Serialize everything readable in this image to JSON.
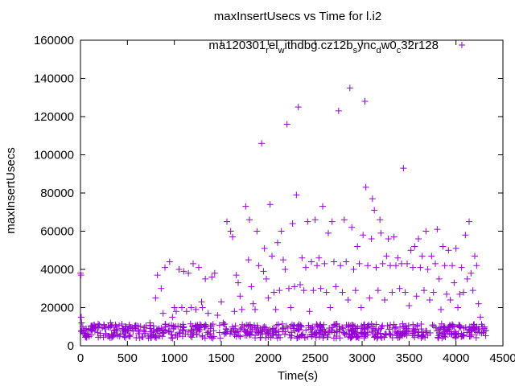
{
  "chart_data": {
    "type": "scatter",
    "title": "maxInsertUsecs vs Time for l.i2",
    "xlabel": "Time(s)",
    "ylabel": "maxInsertUsecs",
    "xlim": [
      0,
      4500
    ],
    "ylim": [
      0,
      160000
    ],
    "x_ticks": [
      0,
      500,
      1000,
      1500,
      2000,
      2500,
      3000,
      3500,
      4000,
      4500
    ],
    "y_ticks": [
      0,
      20000,
      40000,
      60000,
      80000,
      100000,
      120000,
      140000,
      160000
    ],
    "grid": false,
    "legend_position": "top-right",
    "series": [
      {
        "name_parts": [
          {
            "text": "ma120301",
            "sub": false
          },
          {
            "text": "r",
            "sub": true
          },
          {
            "text": "el",
            "sub": false
          },
          {
            "text": "w",
            "sub": true
          },
          {
            "text": "ithdbg.cz12b",
            "sub": false
          },
          {
            "text": "s",
            "sub": true
          },
          {
            "text": "ync",
            "sub": false
          },
          {
            "text": "d",
            "sub": true
          },
          {
            "text": "w0",
            "sub": false
          },
          {
            "text": "c",
            "sub": true
          },
          {
            "text": "32r128",
            "sub": false
          }
        ],
        "color": "#9400d3",
        "marker": "plus",
        "points": [
          [
            0,
            38000
          ],
          [
            5,
            37000
          ],
          [
            8,
            15000
          ],
          [
            12,
            12000
          ],
          [
            25,
            10000
          ],
          [
            60,
            9000
          ],
          [
            120,
            10500
          ],
          [
            200,
            11000
          ],
          [
            260,
            9500
          ],
          [
            320,
            12000
          ],
          [
            380,
            10000
          ],
          [
            450,
            9000
          ],
          [
            520,
            11000
          ],
          [
            600,
            10500
          ],
          [
            680,
            9500
          ],
          [
            740,
            12000
          ],
          [
            800,
            25000
          ],
          [
            820,
            37000
          ],
          [
            860,
            30000
          ],
          [
            880,
            17000
          ],
          [
            900,
            41000
          ],
          [
            950,
            44000
          ],
          [
            980,
            15000
          ],
          [
            1000,
            20000
          ],
          [
            1020,
            18000
          ],
          [
            1050,
            40000
          ],
          [
            1080,
            20000
          ],
          [
            1100,
            39000
          ],
          [
            1130,
            18000
          ],
          [
            1150,
            38000
          ],
          [
            1180,
            20000
          ],
          [
            1200,
            43000
          ],
          [
            1230,
            19000
          ],
          [
            1260,
            41000
          ],
          [
            1290,
            23000
          ],
          [
            1300,
            20000
          ],
          [
            1330,
            35000
          ],
          [
            1360,
            17000
          ],
          [
            1400,
            36000
          ],
          [
            1430,
            38000
          ],
          [
            1460,
            16000
          ],
          [
            1500,
            23000
          ],
          [
            1520,
            12000
          ],
          [
            1560,
            65000
          ],
          [
            1600,
            60000
          ],
          [
            1620,
            57000
          ],
          [
            1640,
            18000
          ],
          [
            1660,
            37000
          ],
          [
            1680,
            33000
          ],
          [
            1700,
            26000
          ],
          [
            1720,
            19000
          ],
          [
            1760,
            73000
          ],
          [
            1790,
            45000
          ],
          [
            1800,
            66000
          ],
          [
            1820,
            31000
          ],
          [
            1840,
            22000
          ],
          [
            1860,
            19000
          ],
          [
            1880,
            60000
          ],
          [
            1900,
            42000
          ],
          [
            1930,
            106000
          ],
          [
            1950,
            39000
          ],
          [
            1960,
            51000
          ],
          [
            1980,
            35000
          ],
          [
            2000,
            25000
          ],
          [
            2020,
            74000
          ],
          [
            2040,
            47000
          ],
          [
            2060,
            28000
          ],
          [
            2080,
            19000
          ],
          [
            2100,
            54000
          ],
          [
            2120,
            29000
          ],
          [
            2140,
            60000
          ],
          [
            2160,
            45000
          ],
          [
            2180,
            40000
          ],
          [
            2200,
            116000
          ],
          [
            2220,
            30000
          ],
          [
            2240,
            20000
          ],
          [
            2260,
            64000
          ],
          [
            2280,
            31000
          ],
          [
            2300,
            79000
          ],
          [
            2320,
            125000
          ],
          [
            2340,
            32000
          ],
          [
            2360,
            46000
          ],
          [
            2380,
            29000
          ],
          [
            2400,
            41000
          ],
          [
            2420,
            65000
          ],
          [
            2440,
            18000
          ],
          [
            2460,
            44000
          ],
          [
            2480,
            29000
          ],
          [
            2500,
            66000
          ],
          [
            2520,
            42000
          ],
          [
            2540,
            46000
          ],
          [
            2560,
            30000
          ],
          [
            2580,
            73000
          ],
          [
            2600,
            43000
          ],
          [
            2620,
            28000
          ],
          [
            2640,
            59000
          ],
          [
            2660,
            20000
          ],
          [
            2680,
            65000
          ],
          [
            2700,
            44000
          ],
          [
            2720,
            31000
          ],
          [
            2750,
            123000
          ],
          [
            2770,
            42000
          ],
          [
            2790,
            28000
          ],
          [
            2810,
            66000
          ],
          [
            2830,
            44000
          ],
          [
            2850,
            24000
          ],
          [
            2870,
            135000
          ],
          [
            2890,
            62000
          ],
          [
            2910,
            40000
          ],
          [
            2930,
            29000
          ],
          [
            2950,
            52000
          ],
          [
            2970,
            43000
          ],
          [
            2990,
            20000
          ],
          [
            3010,
            58000
          ],
          [
            3030,
            128000
          ],
          [
            3040,
            83000
          ],
          [
            3060,
            42000
          ],
          [
            3080,
            25000
          ],
          [
            3100,
            56000
          ],
          [
            3110,
            77000
          ],
          [
            3130,
            71000
          ],
          [
            3150,
            41000
          ],
          [
            3170,
            29000
          ],
          [
            3190,
            66000
          ],
          [
            3200,
            59000
          ],
          [
            3220,
            43000
          ],
          [
            3240,
            24000
          ],
          [
            3260,
            47000
          ],
          [
            3280,
            56000
          ],
          [
            3300,
            42000
          ],
          [
            3320,
            28000
          ],
          [
            3340,
            57000
          ],
          [
            3360,
            42000
          ],
          [
            3380,
            46000
          ],
          [
            3400,
            30000
          ],
          [
            3420,
            43000
          ],
          [
            3440,
            93000
          ],
          [
            3460,
            28000
          ],
          [
            3480,
            43000
          ],
          [
            3500,
            21000
          ],
          [
            3520,
            50000
          ],
          [
            3540,
            41000
          ],
          [
            3560,
            52000
          ],
          [
            3580,
            26000
          ],
          [
            3600,
            56000
          ],
          [
            3620,
            41000
          ],
          [
            3640,
            47000
          ],
          [
            3660,
            29000
          ],
          [
            3680,
            60000
          ],
          [
            3700,
            40000
          ],
          [
            3720,
            24000
          ],
          [
            3740,
            47000
          ],
          [
            3760,
            28000
          ],
          [
            3780,
            43000
          ],
          [
            3800,
            61000
          ],
          [
            3820,
            35000
          ],
          [
            3840,
            19000
          ],
          [
            3860,
            52000
          ],
          [
            3880,
            42000
          ],
          [
            3900,
            27000
          ],
          [
            3920,
            50000
          ],
          [
            3940,
            24000
          ],
          [
            3960,
            42000
          ],
          [
            3980,
            33000
          ],
          [
            4000,
            51000
          ],
          [
            4020,
            20000
          ],
          [
            4040,
            27000
          ],
          [
            4060,
            41000
          ],
          [
            4080,
            28000
          ],
          [
            4100,
            58000
          ],
          [
            4120,
            35000
          ],
          [
            4140,
            65000
          ],
          [
            4160,
            38000
          ],
          [
            4180,
            29000
          ],
          [
            4200,
            47000
          ],
          [
            4220,
            42000
          ],
          [
            4240,
            22000
          ],
          [
            4260,
            15000
          ],
          [
            4280,
            10000
          ],
          [
            4300,
            9000
          ],
          [
            4320,
            8000
          ]
        ]
      }
    ],
    "dense_band": {
      "x_range": [
        0,
        4320
      ],
      "y_range": [
        4000,
        11500
      ],
      "count": 700
    }
  }
}
